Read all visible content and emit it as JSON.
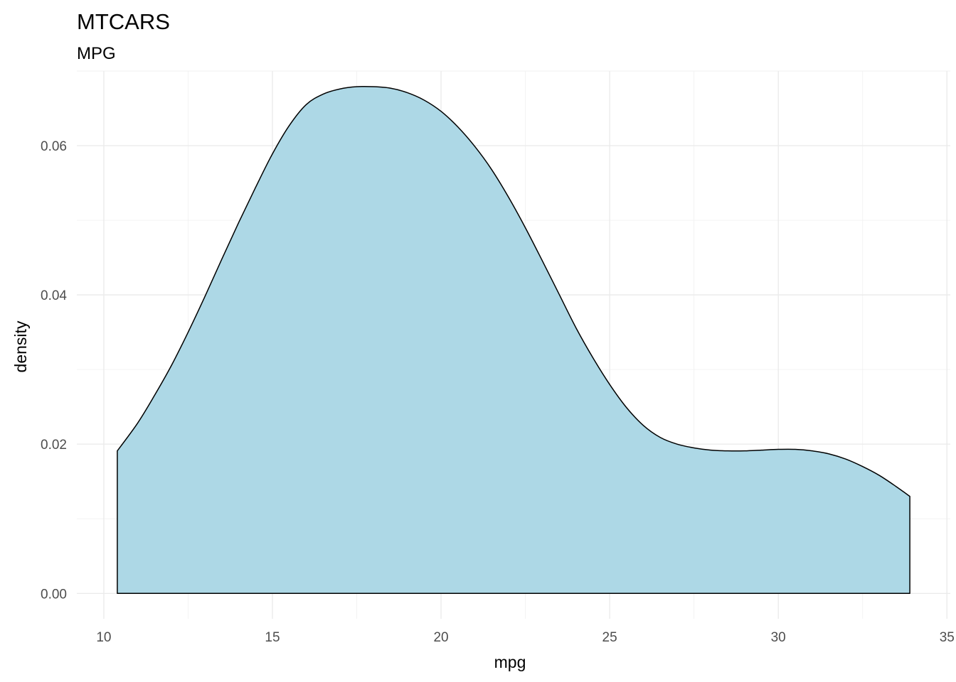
{
  "chart_data": {
    "type": "area",
    "title": "MTCARS",
    "subtitle": "MPG",
    "xlabel": "mpg",
    "ylabel": "density",
    "xlim": [
      9.2,
      35.1
    ],
    "ylim": [
      -0.0034,
      0.07
    ],
    "x_ticks": [
      10,
      15,
      20,
      25,
      30,
      35
    ],
    "x_tick_labels": [
      "10",
      "15",
      "20",
      "25",
      "30",
      "35"
    ],
    "y_ticks": [
      0.0,
      0.02,
      0.04,
      0.06
    ],
    "y_tick_labels": [
      "0.00",
      "0.02",
      "0.04",
      "0.06"
    ],
    "x_minor_ticks": [
      12.5,
      17.5,
      22.5,
      27.5,
      32.5
    ],
    "y_minor_ticks": [
      0.01,
      0.03,
      0.05,
      0.07
    ],
    "grid": true,
    "fill_color": "#add8e6",
    "line_color": "#000000",
    "series": [
      {
        "x": [
          10.4,
          11.0,
          11.5,
          12.0,
          12.5,
          13.0,
          13.5,
          14.0,
          14.5,
          15.0,
          15.5,
          16.0,
          16.5,
          17.0,
          17.5,
          18.0,
          18.5,
          19.0,
          19.5,
          20.0,
          20.5,
          21.0,
          21.5,
          22.0,
          22.5,
          23.0,
          23.5,
          24.0,
          24.5,
          25.0,
          25.5,
          26.0,
          26.5,
          27.0,
          27.5,
          28.0,
          28.5,
          29.0,
          29.5,
          30.0,
          30.5,
          31.0,
          31.5,
          32.0,
          32.5,
          33.0,
          33.5,
          33.9
        ],
        "y": [
          0.0191,
          0.0228,
          0.0265,
          0.0305,
          0.035,
          0.0398,
          0.0448,
          0.0497,
          0.0544,
          0.0589,
          0.0627,
          0.0655,
          0.0669,
          0.0676,
          0.0679,
          0.0679,
          0.0677,
          0.0671,
          0.0661,
          0.0646,
          0.0625,
          0.0599,
          0.0568,
          0.0531,
          0.049,
          0.0446,
          0.0401,
          0.0356,
          0.0316,
          0.028,
          0.0249,
          0.0225,
          0.0209,
          0.02,
          0.0195,
          0.0192,
          0.0191,
          0.0191,
          0.0192,
          0.0193,
          0.0193,
          0.0191,
          0.0187,
          0.018,
          0.017,
          0.0158,
          0.0143,
          0.013
        ]
      }
    ]
  }
}
